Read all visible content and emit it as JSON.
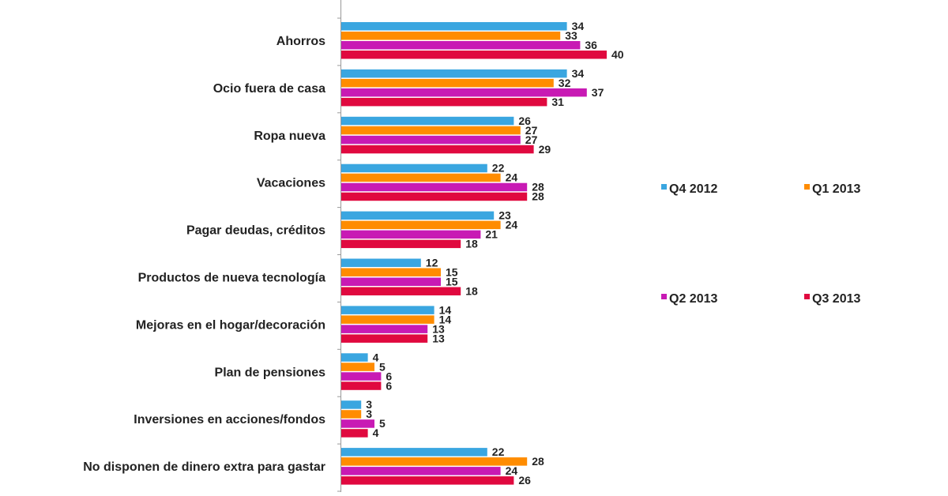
{
  "chart_data": {
    "type": "bar",
    "orientation": "horizontal",
    "title": "",
    "xlabel": "",
    "ylabel": "",
    "xlim": [
      0,
      40
    ],
    "grid": false,
    "legend_position": "right",
    "categories": [
      "Ahorros",
      "Ocio fuera de casa",
      "Ropa nueva",
      "Vacaciones",
      "Pagar deudas, créditos",
      "Productos de nueva tecnología",
      "Mejoras en el hogar/decoración",
      "Plan de pensiones",
      "Inversiones en acciones/fondos",
      "No disponen de dinero extra para gastar"
    ],
    "series": [
      {
        "name": "Q4 2012",
        "color": "#3aa6e0",
        "values": [
          34,
          34,
          26,
          22,
          23,
          12,
          14,
          4,
          3,
          22
        ]
      },
      {
        "name": "Q1 2013",
        "color": "#ff8c00",
        "values": [
          33,
          32,
          27,
          24,
          24,
          15,
          14,
          5,
          3,
          28
        ]
      },
      {
        "name": "Q2 2013",
        "color": "#c81ab4",
        "values": [
          36,
          37,
          27,
          28,
          21,
          15,
          13,
          6,
          5,
          24
        ]
      },
      {
        "name": "Q3 2013",
        "color": "#e0093f",
        "values": [
          40,
          31,
          29,
          28,
          18,
          18,
          13,
          6,
          4,
          26
        ]
      }
    ]
  }
}
